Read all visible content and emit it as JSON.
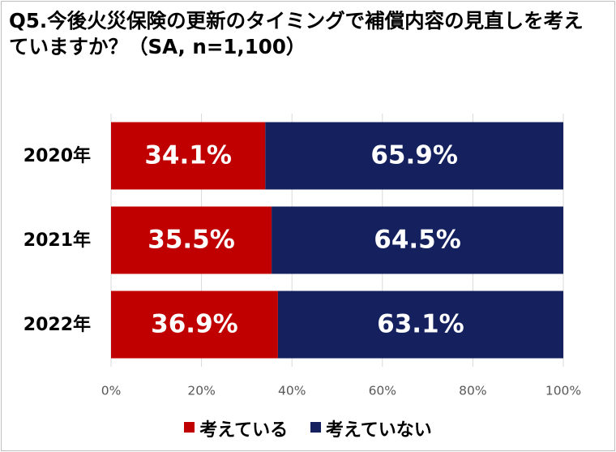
{
  "chart_data": {
    "type": "bar",
    "orientation": "horizontal",
    "stacked": true,
    "percent_stacked": true,
    "title": "Q5.今後火災保険の更新のタイミングで補償内容の見直しを考えていますか？（SA, n=1,100）",
    "categories": [
      "2020年",
      "2021年",
      "2022年"
    ],
    "series": [
      {
        "name": "考えている",
        "values": [
          34.1,
          35.5,
          36.9
        ],
        "labels": [
          "34.1%",
          "35.5%",
          "36.9%"
        ],
        "color": "#c00000"
      },
      {
        "name": "考えていない",
        "values": [
          65.9,
          64.5,
          63.1
        ],
        "labels": [
          "65.9%",
          "64.5%",
          "63.1%"
        ],
        "color": "#14215e"
      }
    ],
    "xlim": [
      0,
      100
    ],
    "x_ticks": [
      "0%",
      "20%",
      "40%",
      "60%",
      "80%",
      "100%"
    ],
    "xlabel": "",
    "ylabel": "",
    "grid": true,
    "legend_position": "bottom",
    "colors": {
      "grid": "#d9d9d9",
      "tick_text": "#595959",
      "value_text": "#ffffff"
    }
  }
}
